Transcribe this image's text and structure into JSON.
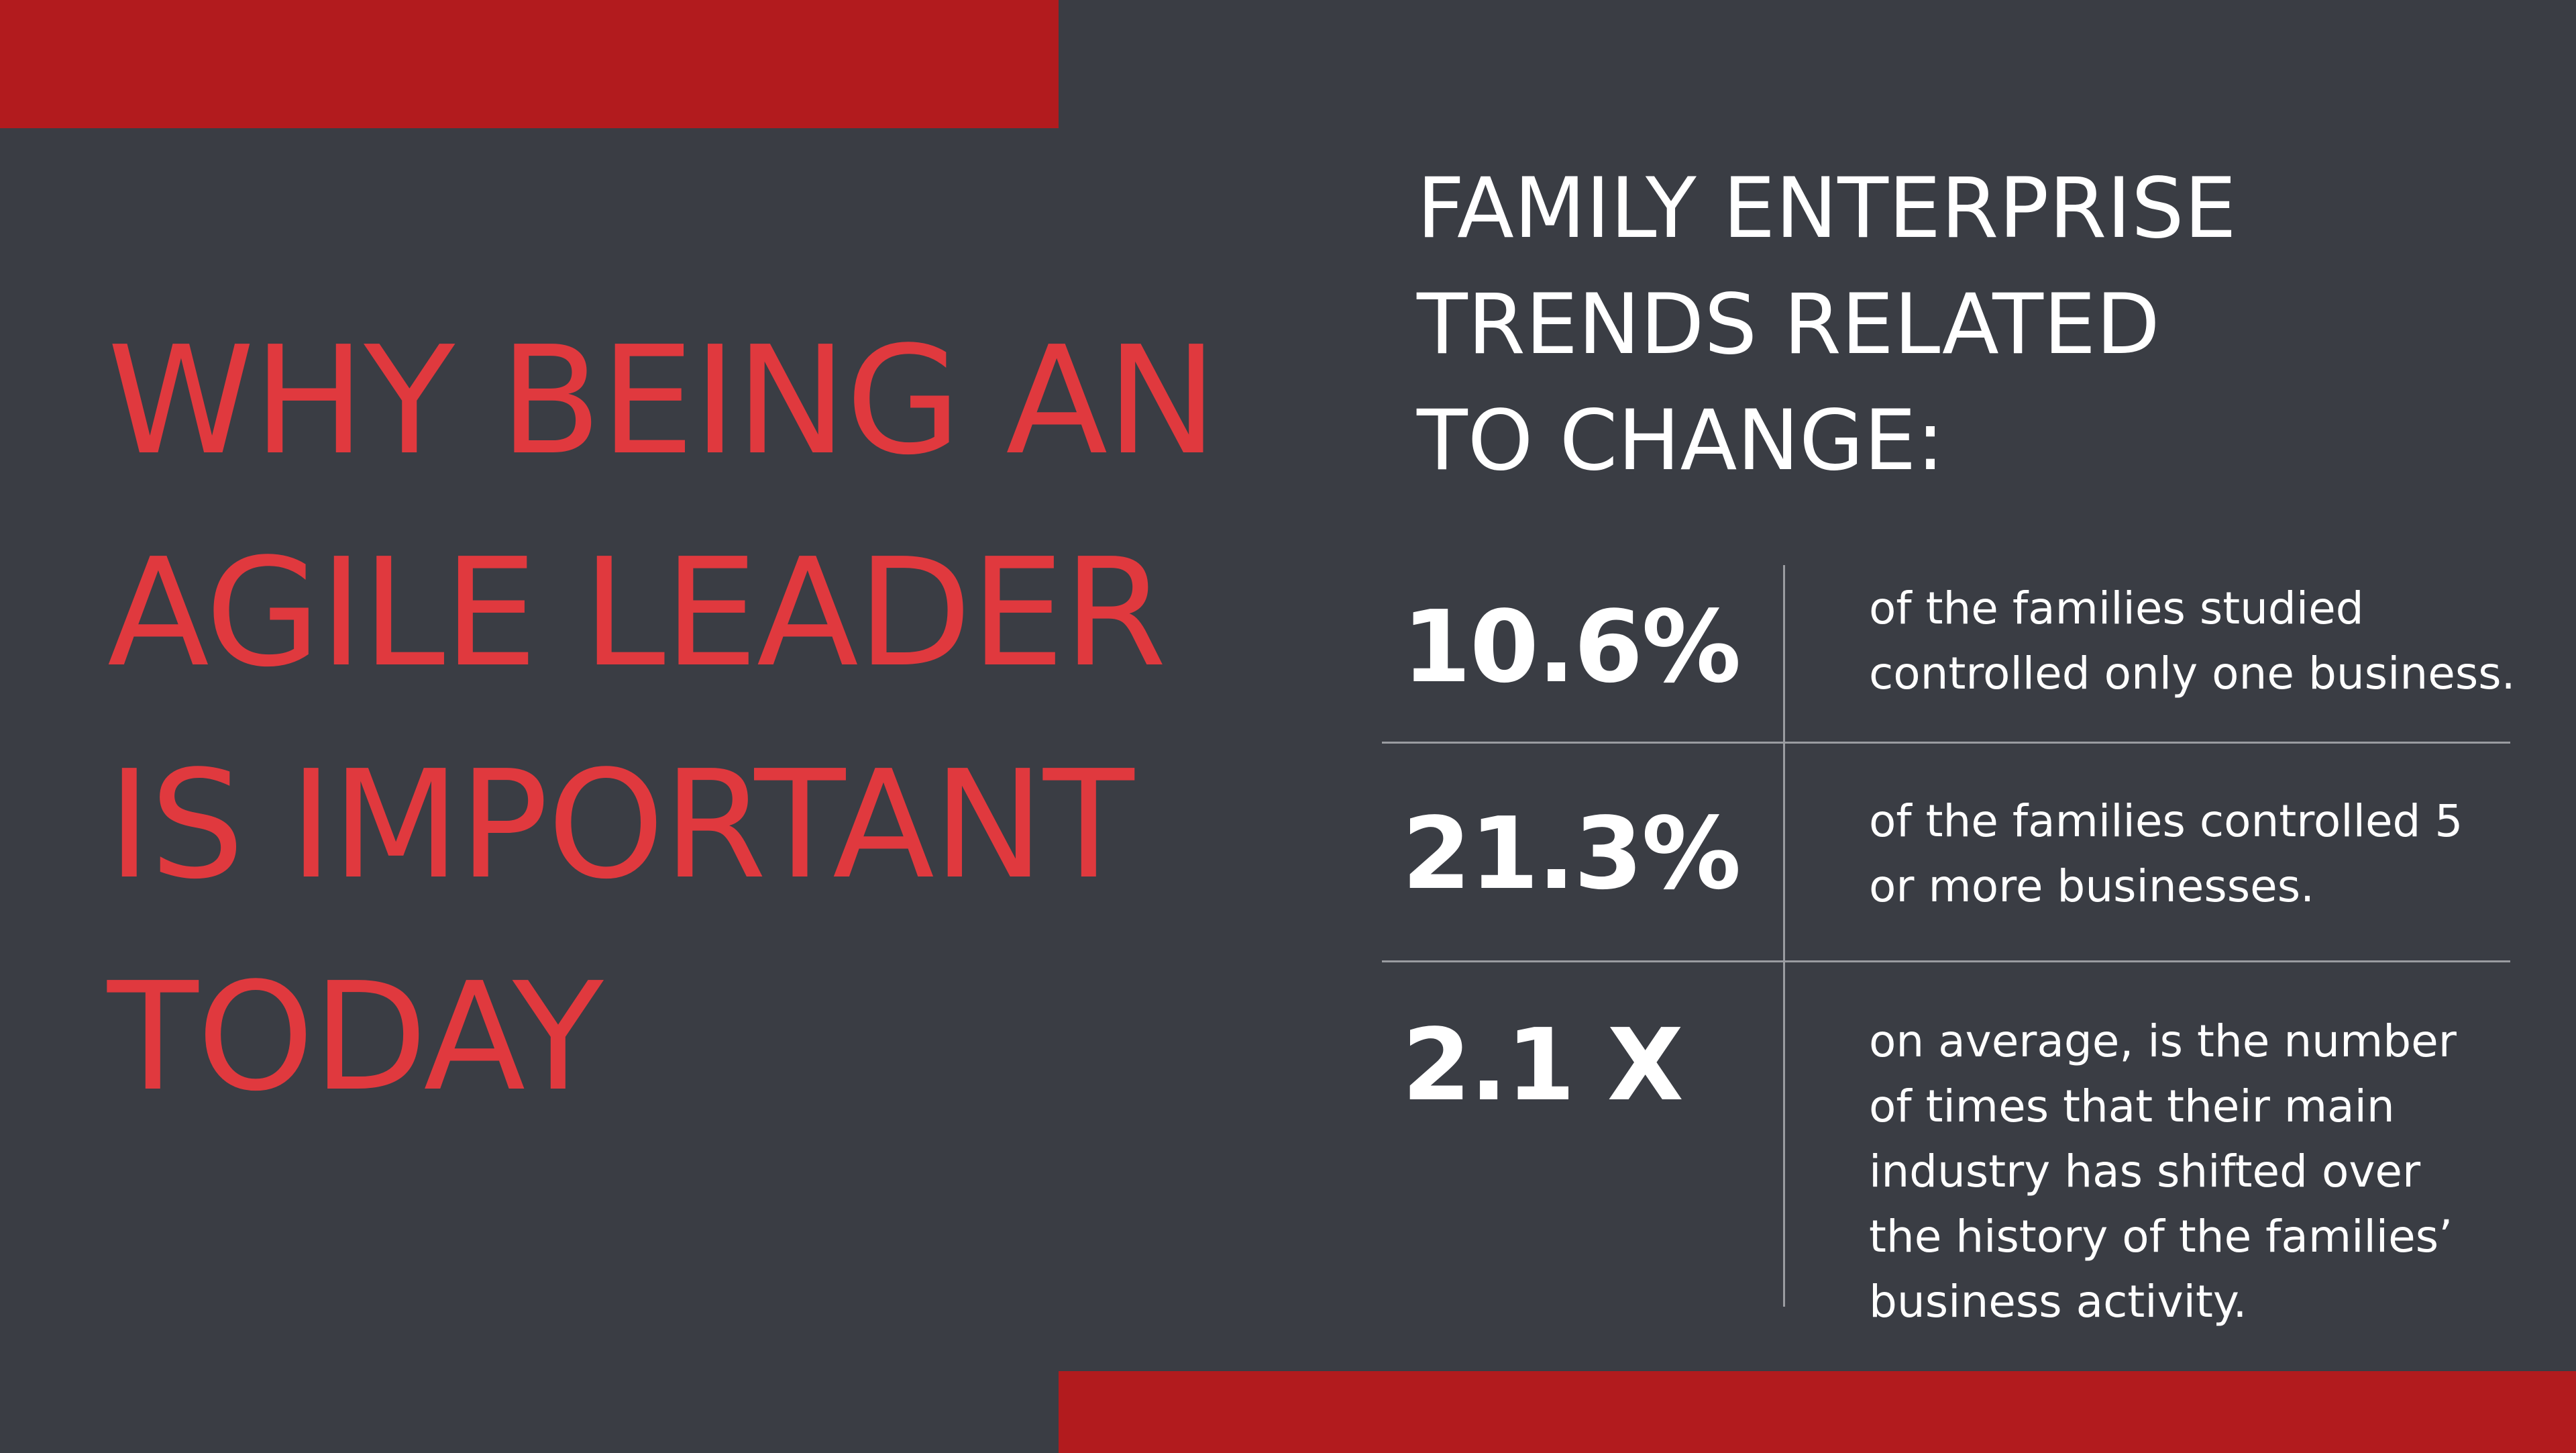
{
  "colors": {
    "background": "#3a3d44",
    "accent_bar": "#b21b1e",
    "title_red": "#e0393e",
    "text_white": "#ffffff",
    "divider": "#9a9ca1"
  },
  "title_lines": [
    "WHY BEING AN",
    "AGILE LEADER",
    "IS IMPORTANT",
    "TODAY"
  ],
  "subtitle_lines": [
    "FAMILY ENTERPRISE",
    "TRENDS RELATED",
    "TO CHANGE:"
  ],
  "stats": [
    {
      "value": "10.6%",
      "lines": [
        "of the families studied",
        "controlled only one business."
      ]
    },
    {
      "value": "21.3%",
      "lines": [
        "of the families controlled 5",
        "or more businesses."
      ]
    },
    {
      "value": "2.1 X",
      "lines": [
        "on average, is the number",
        "of times that their main",
        "industry has shifted over",
        "the history of the families’",
        "business activity."
      ]
    }
  ]
}
